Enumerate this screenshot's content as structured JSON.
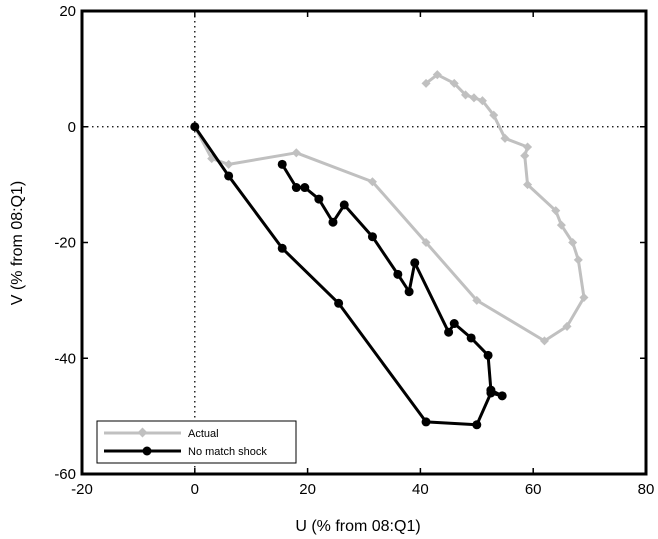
{
  "chart_data": {
    "type": "line",
    "title": "",
    "xlabel": "U (% from 08:Q1)",
    "ylabel": "V (% from 08:Q1)",
    "xlim": [
      -20,
      80
    ],
    "ylim": [
      -60,
      20
    ],
    "xticks": [
      -20,
      0,
      20,
      40,
      60,
      80
    ],
    "yticks": [
      -60,
      -40,
      -20,
      0,
      20
    ],
    "grid": false,
    "reference_lines": {
      "x": 0,
      "y": 0,
      "style": "dotted"
    },
    "legend_position": "bottom-left",
    "series": [
      {
        "name": "Actual",
        "color": "#c0c0c0",
        "marker": "diamond",
        "x": [
          0,
          3,
          6,
          18,
          31.5,
          41,
          50,
          62,
          66,
          69,
          68,
          67,
          65,
          64,
          59,
          58.5,
          59,
          55,
          53,
          51,
          49.5,
          48,
          46,
          43,
          41
        ],
        "y": [
          0,
          -5.5,
          -6.5,
          -4.5,
          -9.5,
          -20,
          -30,
          -37,
          -34.5,
          -29.5,
          -23,
          -20,
          -17,
          -14.5,
          -10,
          -5,
          -3.5,
          -2,
          2,
          4.5,
          5,
          5.5,
          7.5,
          9,
          7.5
        ]
      },
      {
        "name": "No match shock",
        "color": "#000000",
        "marker": "circle",
        "x": [
          0,
          6,
          15.5,
          25.5,
          41,
          50,
          52.5,
          54.5,
          52.5,
          52,
          49,
          46,
          45,
          39,
          38,
          36,
          31.5,
          26.5,
          24.5,
          22,
          19.5,
          18,
          15.5
        ],
        "y": [
          0,
          -8.5,
          -21,
          -30.5,
          -51,
          -51.5,
          -46,
          -46.5,
          -45.5,
          -39.5,
          -36.5,
          -34,
          -35.5,
          -23.5,
          -28.5,
          -25.5,
          -19,
          -13.5,
          -16.5,
          -12.5,
          -10.5,
          -10.5,
          -6.5
        ]
      }
    ]
  }
}
